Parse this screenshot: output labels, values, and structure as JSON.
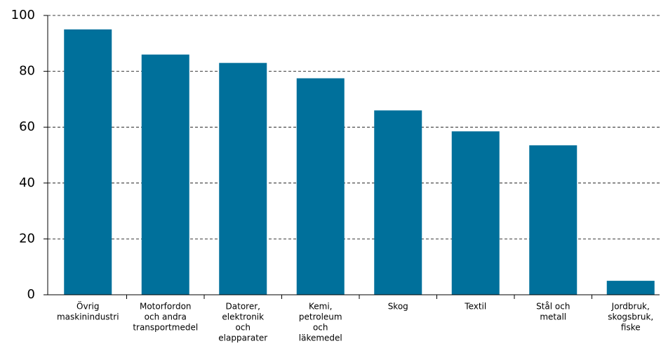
{
  "chart_data": {
    "type": "bar",
    "categories": [
      [
        "Övrig",
        "maskinindustri"
      ],
      [
        "Motorfordon",
        "och andra",
        "transportmedel"
      ],
      [
        "Datorer,",
        "elektronik",
        "och",
        "elapparater"
      ],
      [
        "Kemi,",
        "petroleum",
        "och",
        "läkemedel"
      ],
      [
        "Skog"
      ],
      [
        "Textil"
      ],
      [
        "Stål och",
        "metall"
      ],
      [
        "Jordbruk,",
        "skogsbruk,",
        "fiske"
      ]
    ],
    "values": [
      95,
      86,
      83,
      77.5,
      66,
      58.5,
      53.5,
      5
    ],
    "color": "#00709b",
    "ylim": [
      0,
      100
    ],
    "yticks": [
      0,
      20,
      40,
      60,
      80,
      100
    ],
    "grid": true
  }
}
